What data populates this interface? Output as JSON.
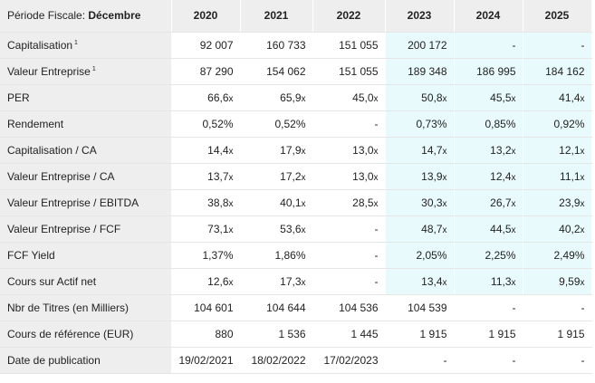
{
  "header": {
    "label_prefix": "Période Fiscale: ",
    "label_bold": "Décembre",
    "years": [
      "2020",
      "2021",
      "2022",
      "2023",
      "2024",
      "2025"
    ]
  },
  "rows": [
    {
      "label": "Capitalisation",
      "sup": "1",
      "values": [
        "92 007",
        "160 733",
        "151 055",
        "200 172",
        "-",
        "-"
      ]
    },
    {
      "label": "Valeur Entreprise",
      "sup": "1",
      "values": [
        "87 290",
        "154 062",
        "151 055",
        "189 348",
        "186 995",
        "184 162"
      ]
    },
    {
      "label": "PER",
      "values": [
        "66,6",
        "65,9",
        "45,0",
        "50,8",
        "45,5",
        "41,4"
      ],
      "suffix": "x"
    },
    {
      "label": "Rendement",
      "values": [
        "0,52%",
        "0,52%",
        "-",
        "0,73%",
        "0,85%",
        "0,92%"
      ]
    },
    {
      "label": "Capitalisation / CA",
      "values": [
        "14,4",
        "17,9",
        "13,0",
        "14,7",
        "13,2",
        "12,1"
      ],
      "suffix": "x"
    },
    {
      "label": "Valeur Entreprise / CA",
      "values": [
        "13,7",
        "17,2",
        "13,0",
        "13,9",
        "12,4",
        "11,1"
      ],
      "suffix": "x"
    },
    {
      "label": "Valeur Entreprise / EBITDA",
      "values": [
        "38,8",
        "40,1",
        "28,5",
        "30,3",
        "26,7",
        "23,9"
      ],
      "suffix": "x"
    },
    {
      "label": "Valeur Entreprise / FCF",
      "values": [
        "73,1",
        "53,6",
        "-",
        "48,7",
        "44,5",
        "40,2"
      ],
      "suffix": "x"
    },
    {
      "label": "FCF Yield",
      "values": [
        "1,37%",
        "1,86%",
        "-",
        "2,05%",
        "2,25%",
        "2,49%"
      ]
    },
    {
      "label": "Cours sur Actif net",
      "values": [
        "12,6",
        "17,3",
        "-",
        "13,4",
        "11,3",
        "9,59"
      ],
      "suffix": "x"
    },
    {
      "label": "Nbr de Titres (en Milliers)",
      "values": [
        "104 601",
        "104 644",
        "104 536",
        "104 539",
        "-",
        "-"
      ],
      "forecast_cols": []
    },
    {
      "label": "Cours de référence (EUR)",
      "values": [
        "880",
        "1 536",
        "1 445",
        "1 915",
        "1 915",
        "1 915"
      ],
      "forecast_cols": []
    },
    {
      "label": "Date de publication",
      "values": [
        "19/02/2021",
        "18/02/2022",
        "17/02/2023",
        "-",
        "-",
        "-"
      ],
      "forecast_cols": []
    }
  ],
  "forecast_default_cols": [
    3,
    4,
    5
  ],
  "colors": {
    "header_bg": "#eeeeee",
    "forecast_bg": "#e8fafc"
  }
}
